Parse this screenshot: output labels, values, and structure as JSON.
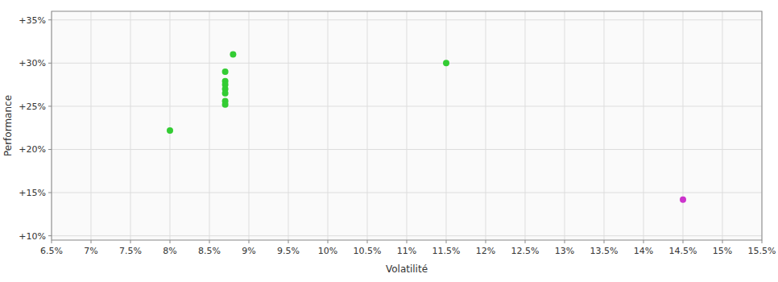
{
  "chart_data": {
    "type": "scatter",
    "xlabel": "Volatilité",
    "ylabel": "Performance",
    "xlim": [
      0.065,
      0.155
    ],
    "ylim": [
      0.095,
      0.36
    ],
    "xticks": [
      {
        "value": 0.065,
        "label": "6.5%"
      },
      {
        "value": 0.07,
        "label": "7%"
      },
      {
        "value": 0.075,
        "label": "7.5%"
      },
      {
        "value": 0.08,
        "label": "8%"
      },
      {
        "value": 0.085,
        "label": "8.5%"
      },
      {
        "value": 0.09,
        "label": "9%"
      },
      {
        "value": 0.095,
        "label": "9.5%"
      },
      {
        "value": 0.1,
        "label": "10%"
      },
      {
        "value": 0.105,
        "label": "10.5%"
      },
      {
        "value": 0.11,
        "label": "11%"
      },
      {
        "value": 0.115,
        "label": "11.5%"
      },
      {
        "value": 0.12,
        "label": "12%"
      },
      {
        "value": 0.125,
        "label": "12.5%"
      },
      {
        "value": 0.13,
        "label": "13%"
      },
      {
        "value": 0.135,
        "label": "13.5%"
      },
      {
        "value": 0.14,
        "label": "14%"
      },
      {
        "value": 0.145,
        "label": "14.5%"
      },
      {
        "value": 0.15,
        "label": "15%"
      },
      {
        "value": 0.155,
        "label": "15.5%"
      }
    ],
    "yticks": [
      {
        "value": 0.1,
        "label": "+10%"
      },
      {
        "value": 0.15,
        "label": "+15%"
      },
      {
        "value": 0.2,
        "label": "+20%"
      },
      {
        "value": 0.25,
        "label": "+25%"
      },
      {
        "value": 0.3,
        "label": "+30%"
      },
      {
        "value": 0.35,
        "label": "+35%"
      }
    ],
    "grid": true,
    "series": [
      {
        "color": "#33cc33",
        "x": [
          0.088,
          0.087,
          0.087,
          0.087,
          0.087,
          0.087,
          0.087,
          0.087,
          0.08,
          0.115
        ],
        "values": [
          0.31,
          0.29,
          0.279,
          0.275,
          0.27,
          0.265,
          0.256,
          0.252,
          0.222,
          0.3
        ]
      },
      {
        "color": "#cc33cc",
        "x": [
          0.145
        ],
        "values": [
          0.142
        ]
      }
    ]
  }
}
